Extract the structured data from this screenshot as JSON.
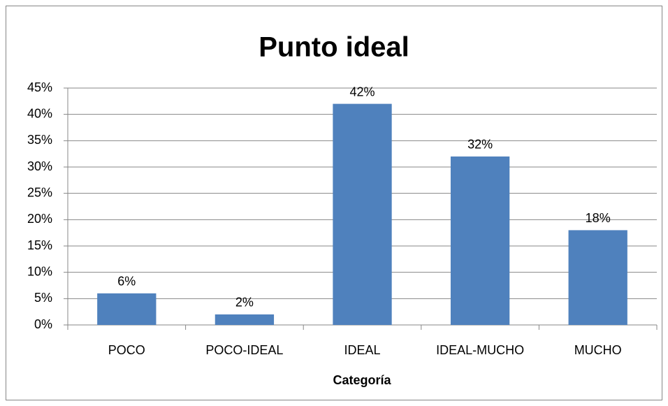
{
  "chart_data": {
    "type": "bar",
    "title": "Punto ideal",
    "x_label": "Categoría",
    "categories": [
      "POCO",
      "POCO-IDEAL",
      "IDEAL",
      "IDEAL-MUCHO",
      "MUCHO"
    ],
    "values": [
      6,
      2,
      42,
      32,
      18
    ],
    "value_labels": [
      "6%",
      "2%",
      "42%",
      "32%",
      "18%"
    ],
    "color": "#4f81bd",
    "ylim": [
      0,
      45
    ],
    "yticks": [
      {
        "value": 0,
        "label": "0%"
      },
      {
        "value": 5,
        "label": "5%"
      },
      {
        "value": 10,
        "label": "10%"
      },
      {
        "value": 15,
        "label": "15%"
      },
      {
        "value": 20,
        "label": "20%"
      },
      {
        "value": 25,
        "label": "25%"
      },
      {
        "value": 30,
        "label": "30%"
      },
      {
        "value": 35,
        "label": "35%"
      },
      {
        "value": 40,
        "label": "40%"
      },
      {
        "value": 45,
        "label": "45%"
      }
    ],
    "grid": true
  }
}
